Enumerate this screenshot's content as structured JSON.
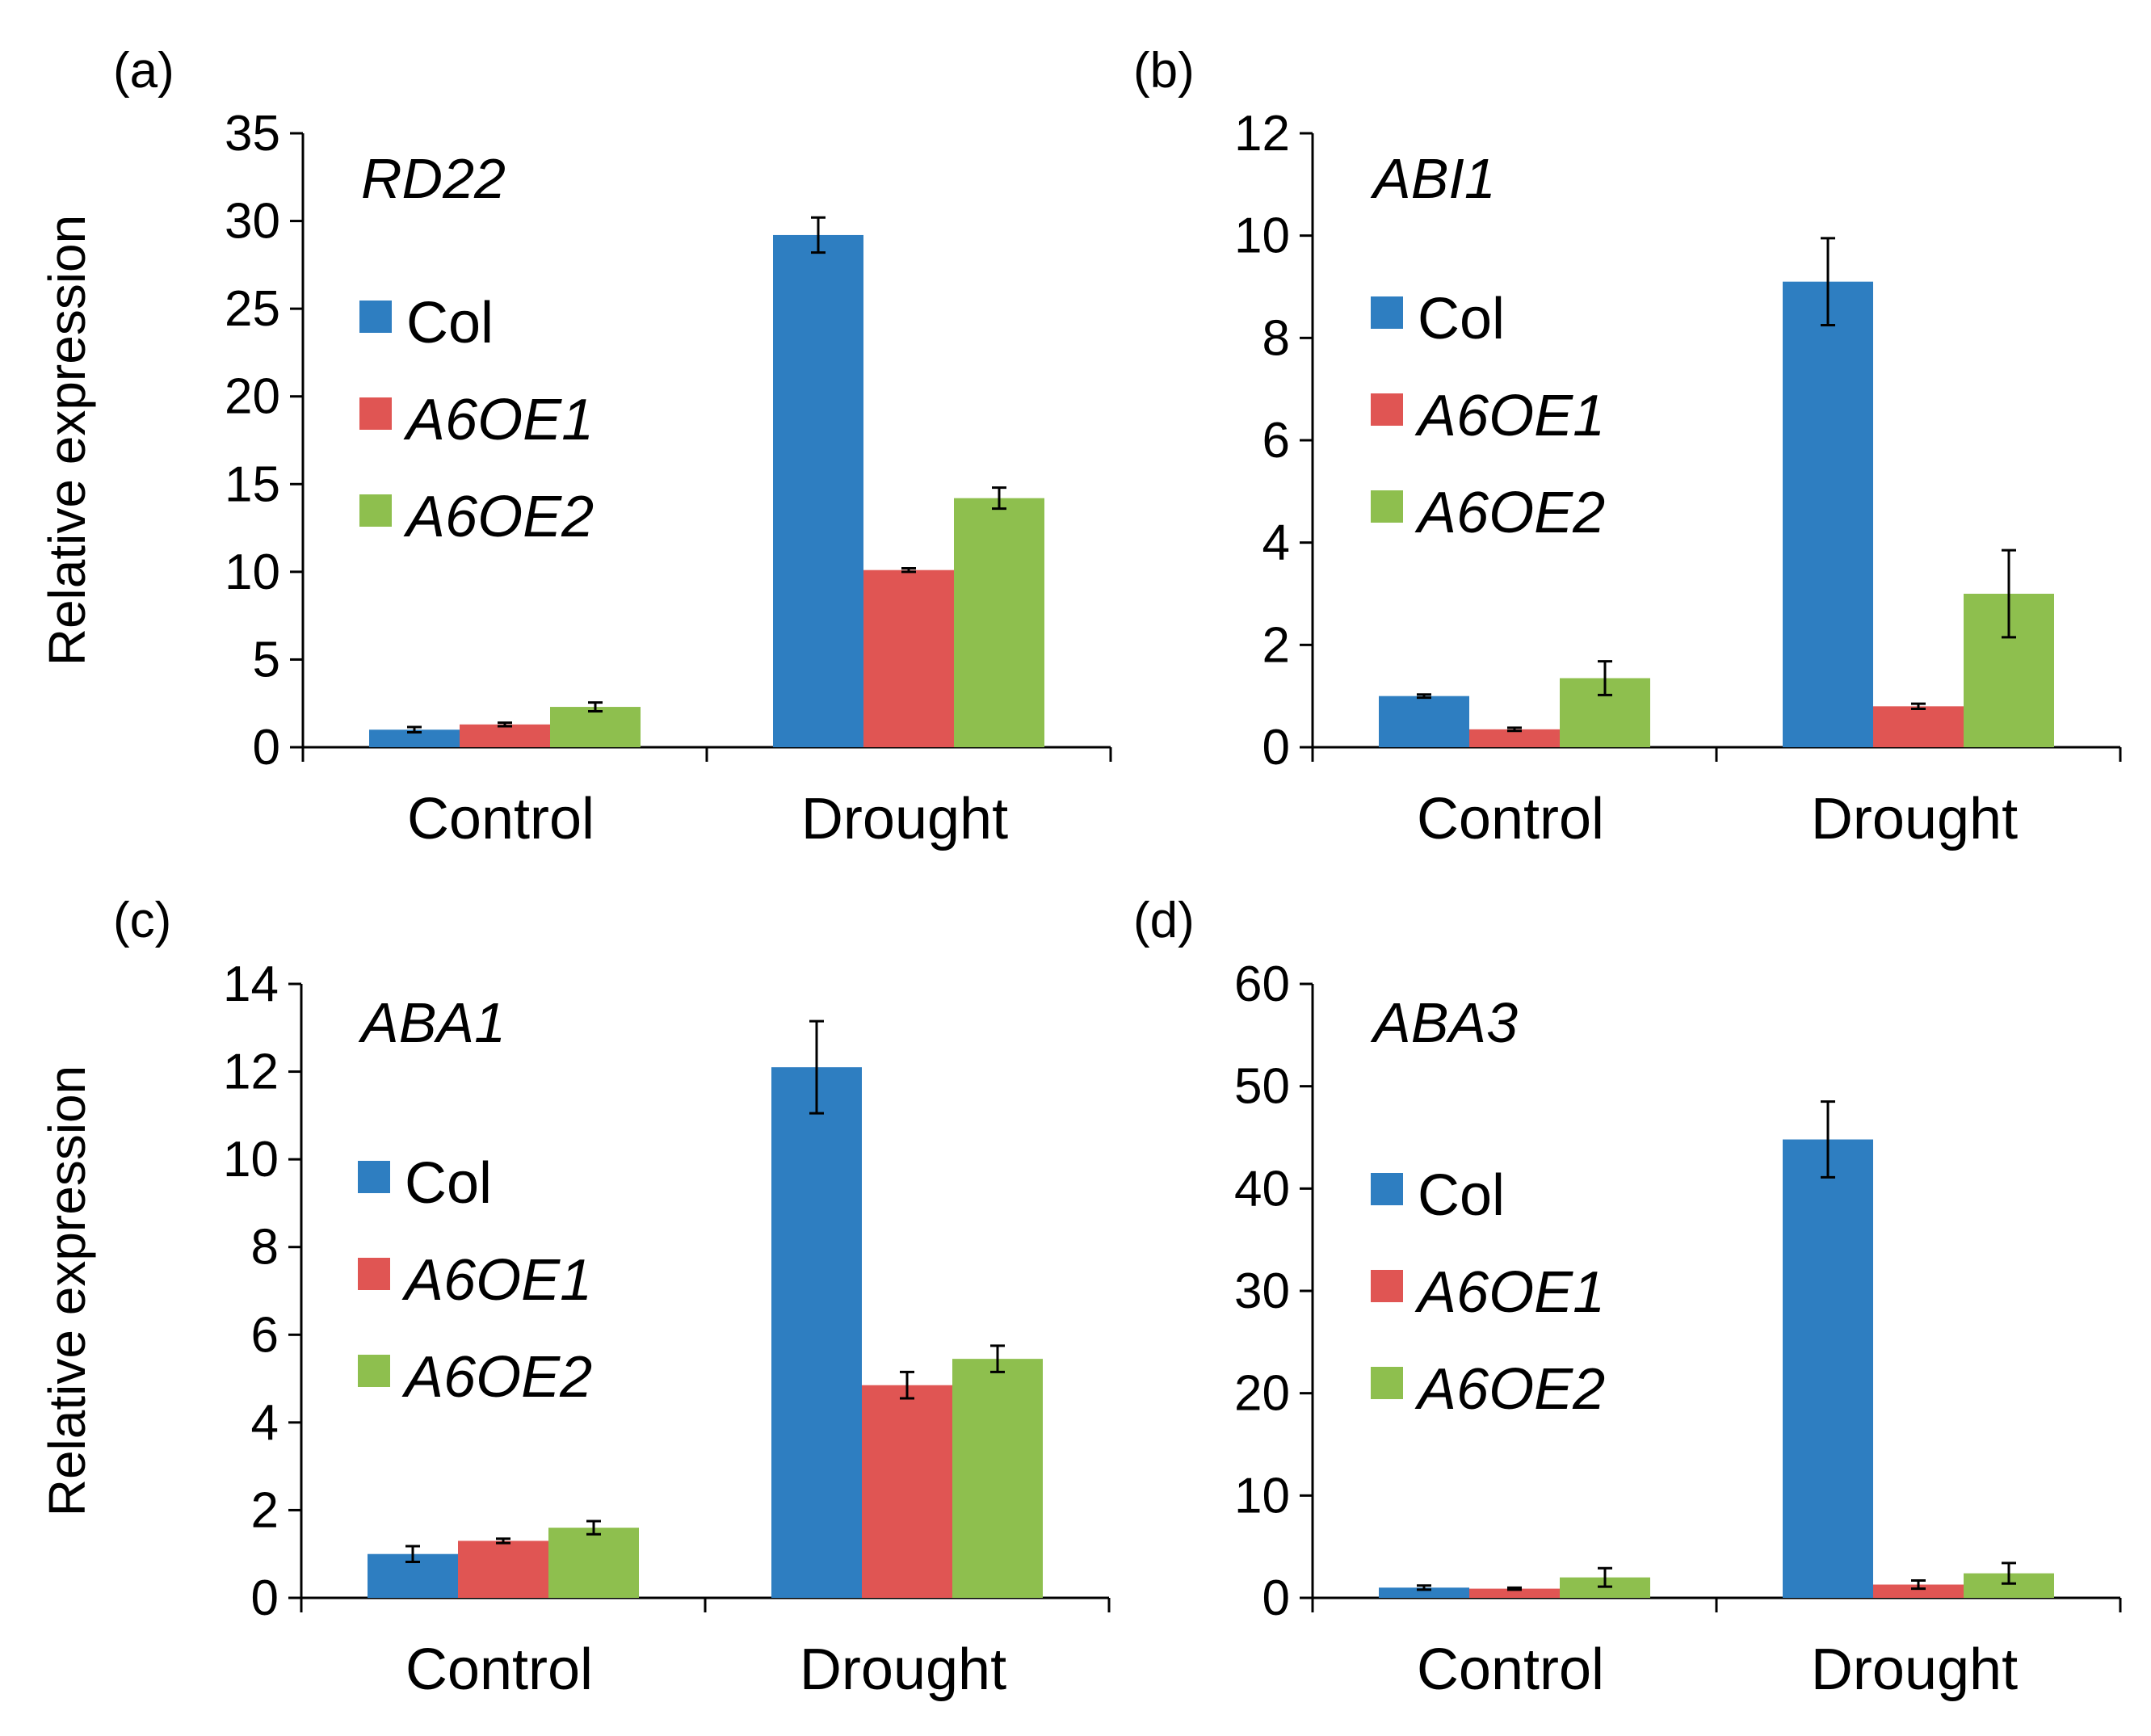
{
  "figure": {
    "colors": {
      "Col": "#2e7ec1",
      "A6OE1": "#e05553",
      "A6OE2": "#8ebf4e"
    }
  },
  "chart_data": [
    {
      "type": "bar",
      "panel_label": "(a)",
      "title": "RD22",
      "ylabel": "Relative expression",
      "xlabel": "",
      "ylim": [
        0,
        35
      ],
      "yticks": [
        "0",
        "5",
        "10",
        "15",
        "20",
        "25",
        "30",
        "35"
      ],
      "categories": [
        "Control",
        "Drought"
      ],
      "series": [
        {
          "name": "Col",
          "italic": false,
          "values": [
            1.0,
            29.2
          ],
          "errors": [
            0.15,
            1.0
          ]
        },
        {
          "name": "A6OE1",
          "italic": true,
          "values": [
            1.3,
            10.1
          ],
          "errors": [
            0.1,
            0.1
          ]
        },
        {
          "name": "A6OE2",
          "italic": true,
          "values": [
            2.3,
            14.2
          ],
          "errors": [
            0.25,
            0.6
          ]
        }
      ],
      "legend": "upper-left"
    },
    {
      "type": "bar",
      "panel_label": "(b)",
      "title": "ABI1",
      "ylabel": "",
      "xlabel": "",
      "ylim": [
        0,
        12
      ],
      "yticks": [
        "0",
        "2",
        "4",
        "6",
        "8",
        "10",
        "12"
      ],
      "categories": [
        "Control",
        "Drought"
      ],
      "series": [
        {
          "name": "Col",
          "italic": false,
          "values": [
            1.0,
            9.1
          ],
          "errors": [
            0.03,
            0.85
          ]
        },
        {
          "name": "A6OE1",
          "italic": true,
          "values": [
            0.35,
            0.8
          ],
          "errors": [
            0.03,
            0.05
          ]
        },
        {
          "name": "A6OE2",
          "italic": true,
          "values": [
            1.35,
            3.0
          ],
          "errors": [
            0.33,
            0.85
          ]
        }
      ],
      "legend": "upper-left"
    },
    {
      "type": "bar",
      "panel_label": "(c)",
      "title": "ABA1",
      "ylabel": "Relative expression",
      "xlabel": "",
      "ylim": [
        0,
        14
      ],
      "yticks": [
        "0",
        "2",
        "4",
        "6",
        "8",
        "10",
        "12",
        "14"
      ],
      "categories": [
        "Control",
        "Drought"
      ],
      "series": [
        {
          "name": "Col",
          "italic": false,
          "values": [
            1.0,
            12.1
          ],
          "errors": [
            0.18,
            1.05
          ]
        },
        {
          "name": "A6OE1",
          "italic": true,
          "values": [
            1.3,
            4.85
          ],
          "errors": [
            0.05,
            0.3
          ]
        },
        {
          "name": "A6OE2",
          "italic": true,
          "values": [
            1.6,
            5.45
          ],
          "errors": [
            0.15,
            0.3
          ]
        }
      ],
      "legend": "upper-left"
    },
    {
      "type": "bar",
      "panel_label": "(d)",
      "title": "ABA3",
      "ylabel": "",
      "xlabel": "",
      "ylim": [
        0,
        60
      ],
      "yticks": [
        "0",
        "10",
        "20",
        "30",
        "40",
        "50",
        "60"
      ],
      "categories": [
        "Control",
        "Drought"
      ],
      "series": [
        {
          "name": "Col",
          "italic": false,
          "values": [
            1.0,
            44.8
          ],
          "errors": [
            0.2,
            3.7
          ]
        },
        {
          "name": "A6OE1",
          "italic": true,
          "values": [
            0.9,
            1.3
          ],
          "errors": [
            0.1,
            0.4
          ]
        },
        {
          "name": "A6OE2",
          "italic": true,
          "values": [
            2.0,
            2.4
          ],
          "errors": [
            0.9,
            1.0
          ]
        }
      ],
      "legend": "upper-left"
    }
  ]
}
